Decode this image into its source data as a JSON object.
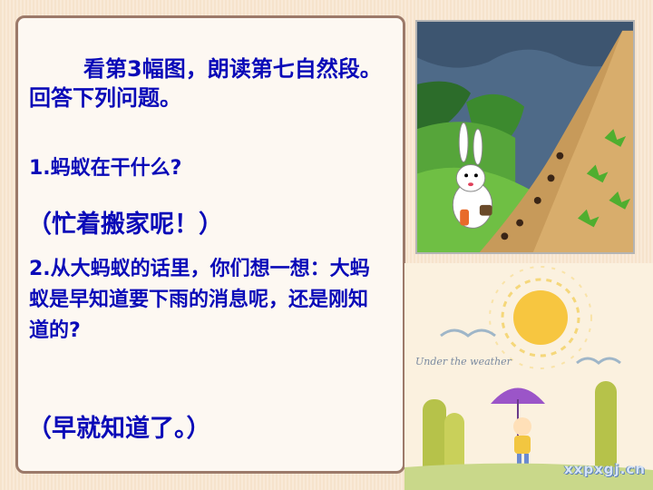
{
  "slide": {
    "intro": "看第3幅图，朗读第七自然段。回答下列问题。",
    "question1": "1.蚂蚁在干什么?",
    "answer1": "（忙着搬家呢！）",
    "question2": "2.从大蚂蚁的话里，你们想一想：大蚂蚁是早知道要下雨的消息呢，还是刚知道的?",
    "answer2": "（早就知道了。）"
  },
  "illustration": {
    "subject1": "rabbit and ants on a hillside",
    "subject2": "child with umbrella under sun",
    "caption": "Under the weather"
  },
  "watermark": "xxpxgj.cn",
  "colors": {
    "text": "#0a0ab8",
    "panel_border": "#9c7a6a",
    "background": "#f7e6d0"
  }
}
